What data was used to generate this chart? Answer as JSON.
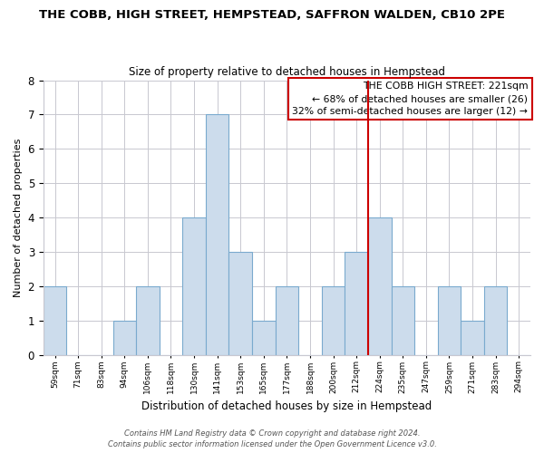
{
  "title": "THE COBB, HIGH STREET, HEMPSTEAD, SAFFRON WALDEN, CB10 2PE",
  "subtitle": "Size of property relative to detached houses in Hempstead",
  "xlabel": "Distribution of detached houses by size in Hempstead",
  "ylabel": "Number of detached properties",
  "bar_color": "#ccdcec",
  "bar_edge_color": "#7aaace",
  "bin_labels": [
    "59sqm",
    "71sqm",
    "83sqm",
    "94sqm",
    "106sqm",
    "118sqm",
    "130sqm",
    "141sqm",
    "153sqm",
    "165sqm",
    "177sqm",
    "188sqm",
    "200sqm",
    "212sqm",
    "224sqm",
    "235sqm",
    "247sqm",
    "259sqm",
    "271sqm",
    "283sqm",
    "294sqm"
  ],
  "bar_heights": [
    2,
    0,
    0,
    1,
    2,
    0,
    4,
    7,
    3,
    1,
    2,
    0,
    2,
    3,
    4,
    2,
    0,
    2,
    1,
    2,
    0
  ],
  "ylim": [
    0,
    8
  ],
  "yticks": [
    0,
    1,
    2,
    3,
    4,
    5,
    6,
    7,
    8
  ],
  "vline_x_index": 13.5,
  "vline_color": "#cc0000",
  "annotation_title": "THE COBB HIGH STREET: 221sqm",
  "annotation_line1": "← 68% of detached houses are smaller (26)",
  "annotation_line2": "32% of semi-detached houses are larger (12) →",
  "annotation_box_color": "#ffffff",
  "annotation_box_edge_color": "#cc0000",
  "footer_line1": "Contains HM Land Registry data © Crown copyright and database right 2024.",
  "footer_line2": "Contains public sector information licensed under the Open Government Licence v3.0.",
  "background_color": "#ffffff",
  "grid_color": "#c8c8d0"
}
